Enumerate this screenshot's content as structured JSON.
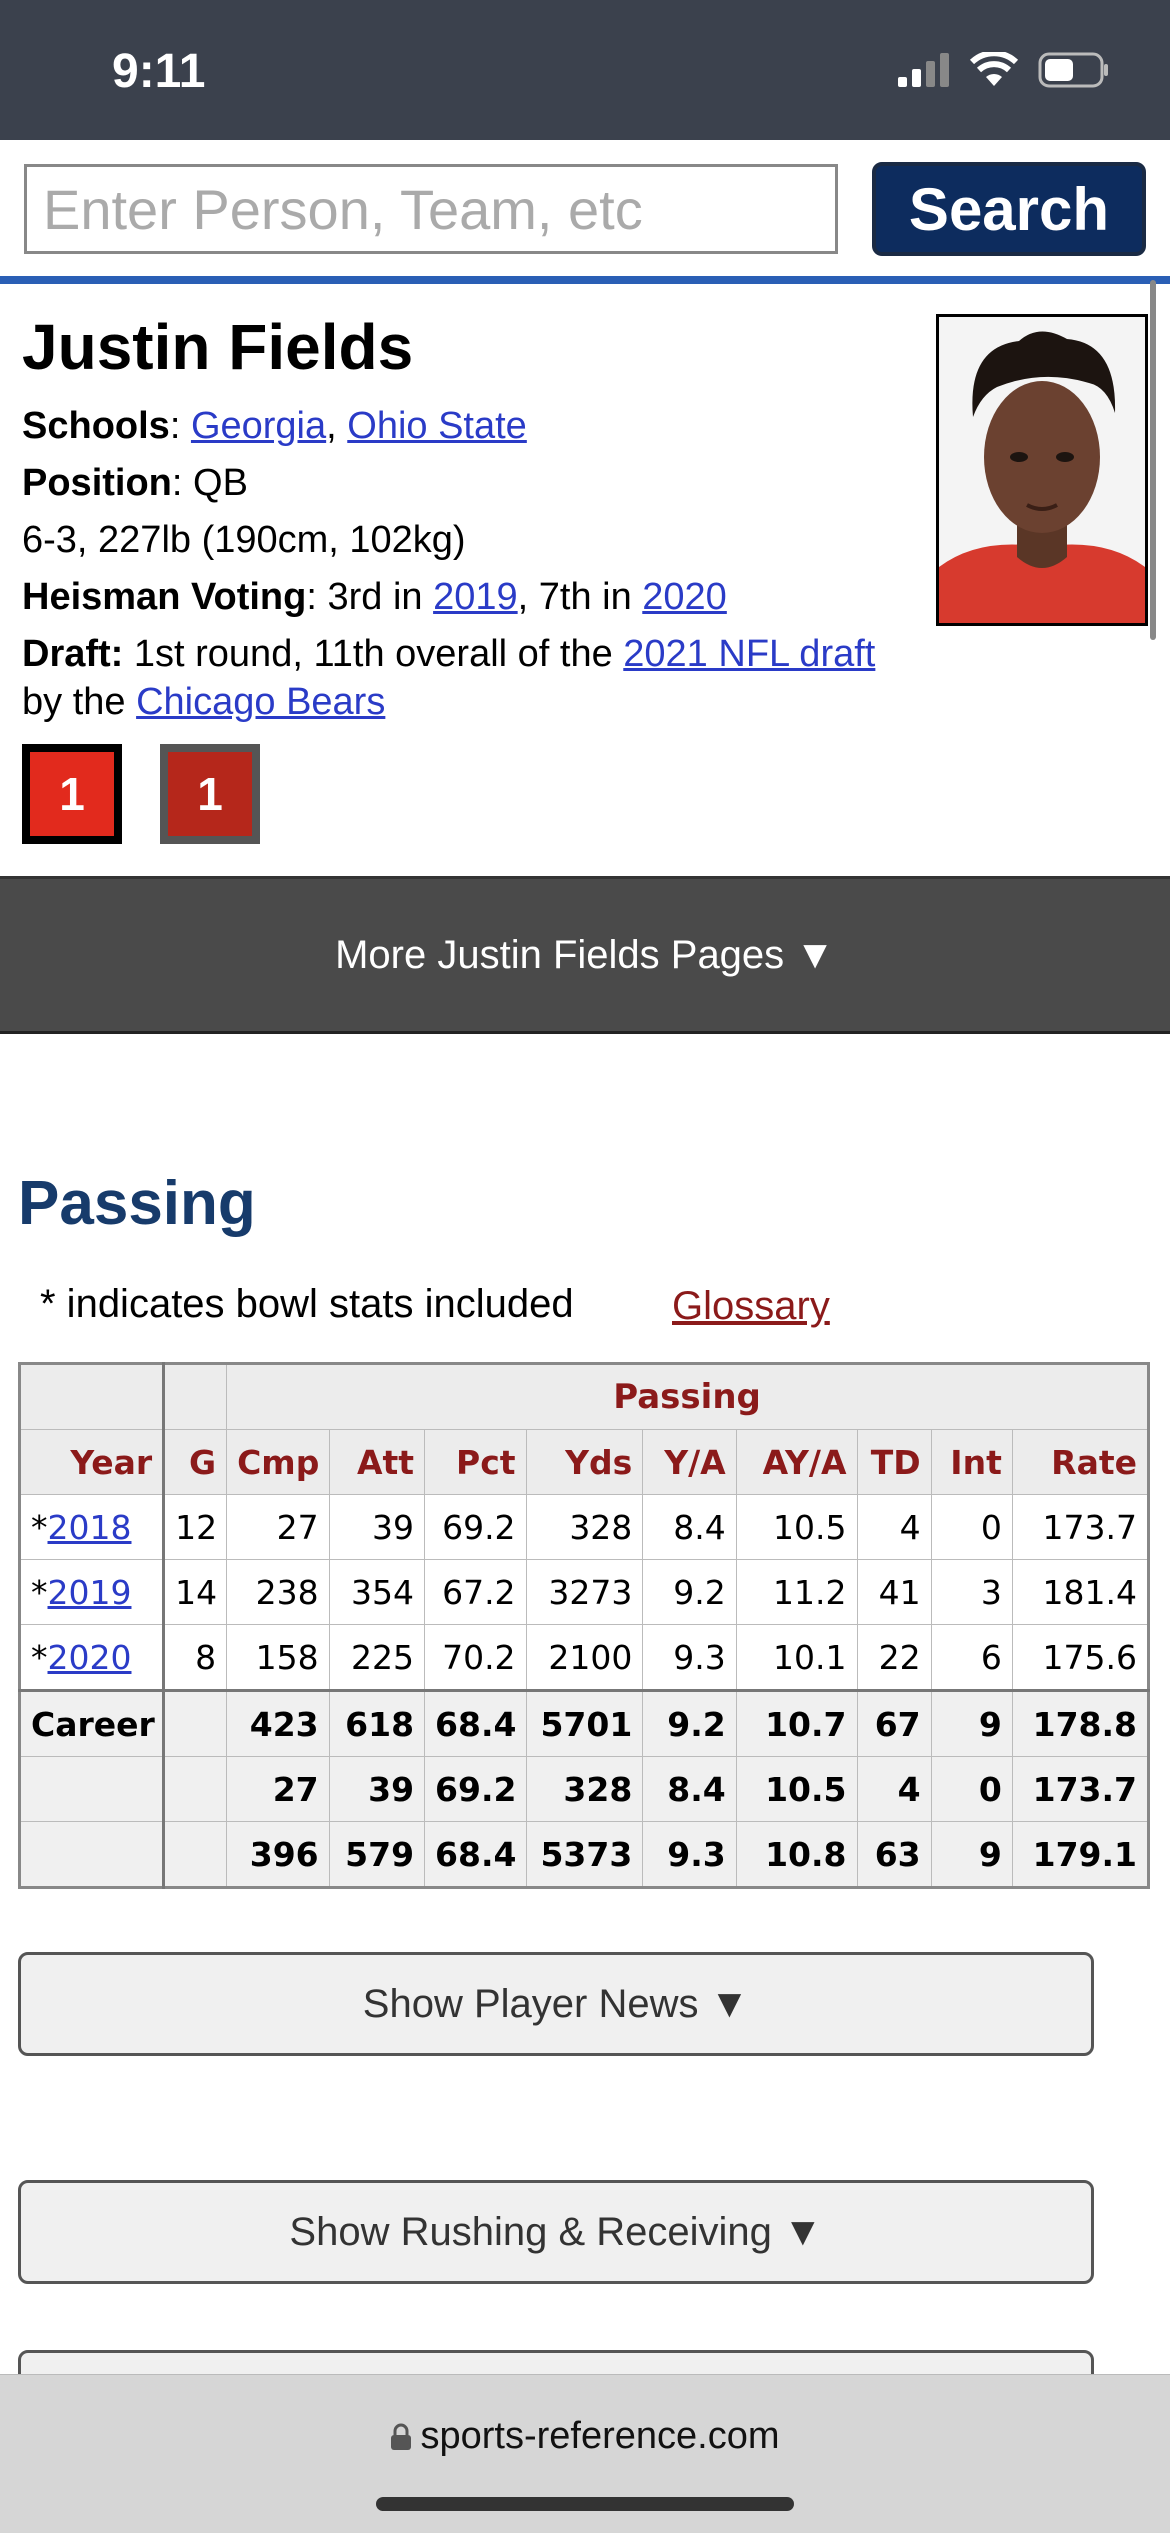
{
  "status": {
    "time": "9:11"
  },
  "search": {
    "placeholder": "Enter Person, Team, etc",
    "button": "Search"
  },
  "player": {
    "name": "Justin Fields",
    "schools_label": "Schools",
    "schools": [
      "Georgia",
      "Ohio State"
    ],
    "position_label": "Position",
    "position": "QB",
    "measurements": "6-3, 227lb (190cm, 102kg)",
    "heisman_label": "Heisman Voting",
    "heisman_pre": "3rd in",
    "heisman_year1": "2019",
    "heisman_mid": ", 7th in",
    "heisman_year2": "2020",
    "draft_label": "Draft:",
    "draft_pre": "1st round, 11th overall of the",
    "draft_link": "2021 NFL draft",
    "draft_mid": "by the",
    "draft_team": "Chicago Bears",
    "badges": [
      "1",
      "1"
    ]
  },
  "more_pages": "More Justin Fields Pages ▼",
  "passing": {
    "title": "Passing",
    "note": "* indicates bowl stats included",
    "glossary": "Glossary",
    "over_header": "Passing",
    "columns": [
      "Year",
      "G",
      "Cmp",
      "Att",
      "Pct",
      "Yds",
      "Y/A",
      "AY/A",
      "TD",
      "Int",
      "Rate"
    ],
    "rows": [
      {
        "year": "2018",
        "g": "12",
        "cmp": "27",
        "att": "39",
        "pct": "69.2",
        "yds": "328",
        "ya": "8.4",
        "aya": "10.5",
        "td": "4",
        "int": "0",
        "rate": "173.7"
      },
      {
        "year": "2019",
        "g": "14",
        "cmp": "238",
        "att": "354",
        "pct": "67.2",
        "yds": "3273",
        "ya": "9.2",
        "aya": "11.2",
        "td": "41",
        "int": "3",
        "rate": "181.4"
      },
      {
        "year": "2020",
        "g": "8",
        "cmp": "158",
        "att": "225",
        "pct": "70.2",
        "yds": "2100",
        "ya": "9.3",
        "aya": "10.1",
        "td": "22",
        "int": "6",
        "rate": "175.6"
      }
    ],
    "totals": [
      {
        "label": "Career",
        "cmp": "423",
        "att": "618",
        "pct": "68.4",
        "yds": "5701",
        "ya": "9.2",
        "aya": "10.7",
        "td": "67",
        "int": "9",
        "rate": "178.8"
      },
      {
        "label": "",
        "cmp": "27",
        "att": "39",
        "pct": "69.2",
        "yds": "328",
        "ya": "8.4",
        "aya": "10.5",
        "td": "4",
        "int": "0",
        "rate": "173.7"
      },
      {
        "label": "",
        "cmp": "396",
        "att": "579",
        "pct": "68.4",
        "yds": "5373",
        "ya": "9.3",
        "aya": "10.8",
        "td": "63",
        "int": "9",
        "rate": "179.1"
      }
    ]
  },
  "buttons": {
    "player_news": "Show Player News ▼",
    "rushing": "Show Rushing & Receiving ▼"
  },
  "browser": {
    "url": "sports-reference.com"
  }
}
